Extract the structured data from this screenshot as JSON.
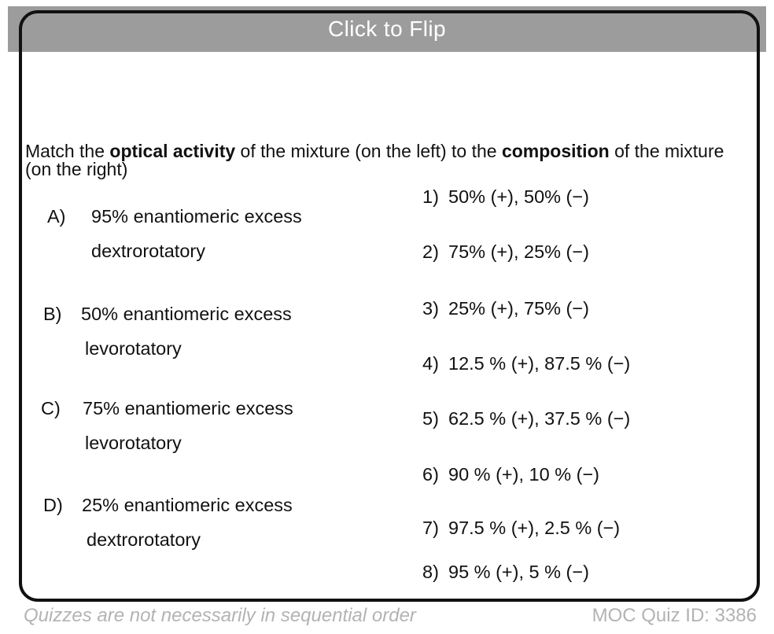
{
  "header": {
    "title": "Click to Flip"
  },
  "question": {
    "line1_segments": [
      {
        "text": "Match the ",
        "bold": false
      },
      {
        "text": "optical activity",
        "bold": true
      },
      {
        "text": " of the mixture (on the left) to the ",
        "bold": false
      },
      {
        "text": "composition",
        "bold": true
      },
      {
        "text": " of the mixture",
        "bold": false
      }
    ],
    "line2": "(on the right)"
  },
  "left_options": [
    {
      "label": "A)",
      "line1": "95% enantiomeric excess",
      "line2": "dextrorotatory"
    },
    {
      "label": "B)",
      "line1": "50% enantiomeric excess",
      "line2": "levorotatory"
    },
    {
      "label": "C)",
      "line1": "75% enantiomeric excess",
      "line2": "levorotatory"
    },
    {
      "label": "D)",
      "line1": "25% enantiomeric excess",
      "line2": "dextrorotatory"
    }
  ],
  "right_options": [
    {
      "label": "1)",
      "text": "50% (+), 50% (−)"
    },
    {
      "label": "2)",
      "text": "75% (+), 25% (−)"
    },
    {
      "label": "3)",
      "text": "25% (+), 75% (−)"
    },
    {
      "label": "4)",
      "text": "12.5 % (+), 87.5 % (−)"
    },
    {
      "label": "5)",
      "text": "62.5 % (+), 37.5 % (−)"
    },
    {
      "label": "6)",
      "text": "90 % (+), 10 % (−)"
    },
    {
      "label": "7)",
      "text": "97.5 % (+), 2.5 % (−)"
    },
    {
      "label": "8)",
      "text": "95 % (+), 5 % (−)"
    }
  ],
  "footer": {
    "note": "Quizzes are not necessarily in sequential order",
    "quiz_id": "MOC Quiz ID: 3386"
  },
  "colors": {
    "header_bar": "#9c9c9c",
    "header_text": "#ffffff",
    "card_border": "#111111",
    "body_text": "#111111",
    "footer_text": "#b3b3b3"
  }
}
